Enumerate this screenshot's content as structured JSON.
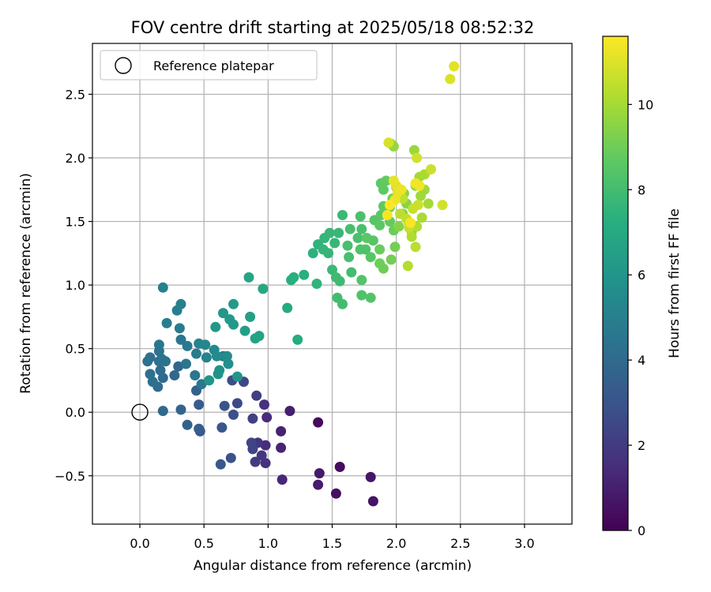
{
  "chart_data": {
    "type": "scatter",
    "title": "FOV centre drift starting at 2025/05/18 08:52:32",
    "xlabel": "Angular distance from reference (arcmin)",
    "ylabel": "Rotation from reference (arcmin)",
    "xlim": [
      -0.37,
      3.37
    ],
    "ylim": [
      -0.88,
      2.9
    ],
    "xticks": [
      0.0,
      0.5,
      1.0,
      1.5,
      2.0,
      2.5,
      3.0
    ],
    "xtick_labels": [
      "0.0",
      "0.5",
      "1.0",
      "1.5",
      "2.0",
      "2.5",
      "3.0"
    ],
    "yticks": [
      -0.5,
      0.0,
      0.5,
      1.0,
      1.5,
      2.0,
      2.5
    ],
    "ytick_labels": [
      "−0.5",
      "0.0",
      "0.5",
      "1.0",
      "1.5",
      "2.0",
      "2.5"
    ],
    "grid": true,
    "legend": {
      "position": "top-left",
      "entries": [
        "Reference platepar"
      ]
    },
    "colorbar": {
      "label": "Hours from first FF file",
      "range": [
        0,
        11.6
      ],
      "ticks": [
        0,
        2,
        4,
        6,
        8,
        10
      ],
      "colormap": "viridis"
    },
    "reference_point": {
      "x": 0.0,
      "y": 0.0
    },
    "series": [
      {
        "points": [
          [
            1.39,
            -0.08,
            0.3
          ],
          [
            1.56,
            -0.43,
            0.4
          ],
          [
            1.53,
            -0.64,
            0.5
          ],
          [
            1.82,
            -0.7,
            0.6
          ],
          [
            1.8,
            -0.51,
            0.7
          ],
          [
            1.4,
            -0.48,
            0.8
          ],
          [
            1.39,
            -0.57,
            0.9
          ],
          [
            1.17,
            0.01,
            1.0
          ],
          [
            1.1,
            -0.15,
            1.1
          ],
          [
            1.1,
            -0.28,
            1.2
          ],
          [
            1.11,
            -0.53,
            1.3
          ],
          [
            0.99,
            -0.04,
            1.4
          ],
          [
            0.98,
            -0.26,
            1.5
          ],
          [
            0.98,
            -0.4,
            1.6
          ],
          [
            0.97,
            0.06,
            1.7
          ],
          [
            0.92,
            -0.24,
            1.8
          ],
          [
            0.95,
            -0.34,
            1.9
          ],
          [
            0.9,
            -0.39,
            2.0
          ],
          [
            0.91,
            0.13,
            2.1
          ],
          [
            0.88,
            -0.05,
            2.2
          ],
          [
            0.88,
            -0.29,
            2.3
          ],
          [
            0.87,
            -0.24,
            2.4
          ],
          [
            0.81,
            0.24,
            2.5
          ],
          [
            0.76,
            0.07,
            2.6
          ],
          [
            0.72,
            0.25,
            2.7
          ],
          [
            0.73,
            -0.02,
            2.8
          ],
          [
            0.71,
            -0.36,
            2.9
          ],
          [
            0.66,
            0.05,
            3.0
          ],
          [
            0.64,
            -0.12,
            3.1
          ],
          [
            0.63,
            -0.41,
            3.2
          ],
          [
            0.47,
            -0.15,
            3.3
          ],
          [
            0.46,
            0.06,
            3.3
          ],
          [
            0.46,
            -0.13,
            3.4
          ],
          [
            0.44,
            0.17,
            3.5
          ],
          [
            0.37,
            -0.1,
            3.6
          ],
          [
            0.32,
            0.02,
            3.7
          ],
          [
            0.3,
            0.36,
            3.8
          ],
          [
            0.27,
            0.29,
            3.9
          ],
          [
            0.18,
            0.01,
            4.0
          ],
          [
            0.18,
            0.27,
            4.0
          ],
          [
            0.14,
            0.2,
            4.1
          ],
          [
            0.16,
            0.33,
            4.1
          ],
          [
            0.1,
            0.24,
            4.2
          ],
          [
            0.08,
            0.3,
            4.2
          ],
          [
            0.06,
            0.4,
            4.3
          ],
          [
            0.08,
            0.43,
            4.3
          ],
          [
            0.15,
            0.4,
            4.3
          ],
          [
            0.17,
            0.42,
            4.4
          ],
          [
            0.2,
            0.4,
            4.4
          ],
          [
            0.15,
            0.48,
            4.4
          ],
          [
            0.15,
            0.53,
            4.5
          ],
          [
            0.36,
            0.38,
            4.5
          ],
          [
            0.32,
            0.57,
            4.5
          ],
          [
            0.43,
            0.29,
            4.6
          ],
          [
            0.48,
            0.22,
            4.6
          ],
          [
            0.65,
            0.44,
            4.7
          ],
          [
            0.37,
            0.52,
            4.7
          ],
          [
            0.44,
            0.46,
            4.8
          ],
          [
            0.31,
            0.66,
            4.8
          ],
          [
            0.21,
            0.7,
            4.9
          ],
          [
            0.29,
            0.8,
            4.9
          ],
          [
            0.32,
            0.85,
            5.0
          ],
          [
            0.18,
            0.98,
            5.0
          ],
          [
            0.52,
            0.43,
            5.1
          ],
          [
            0.46,
            0.54,
            5.2
          ],
          [
            0.51,
            0.53,
            5.3
          ],
          [
            0.58,
            0.49,
            5.4
          ],
          [
            0.6,
            0.44,
            5.5
          ],
          [
            0.68,
            0.44,
            5.6
          ],
          [
            0.69,
            0.38,
            5.7
          ],
          [
            0.62,
            0.33,
            5.8
          ],
          [
            0.61,
            0.3,
            5.9
          ],
          [
            0.54,
            0.25,
            6.0
          ],
          [
            0.76,
            0.28,
            6.0
          ],
          [
            0.59,
            0.67,
            6.1
          ],
          [
            0.65,
            0.78,
            6.1
          ],
          [
            0.7,
            0.73,
            6.2
          ],
          [
            0.73,
            0.69,
            6.2
          ],
          [
            0.73,
            0.85,
            6.3
          ],
          [
            0.82,
            0.64,
            6.4
          ],
          [
            0.86,
            0.75,
            6.5
          ],
          [
            0.9,
            0.58,
            6.6
          ],
          [
            0.93,
            0.6,
            6.7
          ],
          [
            0.85,
            1.06,
            6.8
          ],
          [
            0.96,
            0.97,
            6.9
          ],
          [
            1.15,
            0.82,
            7.0
          ],
          [
            1.23,
            0.57,
            7.1
          ],
          [
            1.18,
            1.04,
            7.2
          ],
          [
            1.2,
            1.06,
            7.3
          ],
          [
            1.28,
            1.08,
            7.3
          ],
          [
            1.35,
            1.25,
            7.4
          ],
          [
            1.38,
            1.01,
            7.5
          ],
          [
            1.39,
            1.32,
            7.5
          ],
          [
            1.43,
            1.28,
            7.6
          ],
          [
            1.44,
            1.37,
            7.6
          ],
          [
            1.47,
            1.25,
            7.6
          ],
          [
            1.48,
            1.41,
            7.7
          ],
          [
            1.52,
            1.33,
            7.7
          ],
          [
            1.55,
            1.41,
            7.7
          ],
          [
            1.58,
            1.55,
            7.8
          ],
          [
            1.5,
            1.12,
            7.8
          ],
          [
            1.53,
            1.06,
            7.9
          ],
          [
            1.56,
            1.03,
            7.9
          ],
          [
            1.54,
            0.9,
            8.0
          ],
          [
            1.58,
            0.85,
            8.0
          ],
          [
            1.65,
            1.1,
            8.0
          ],
          [
            1.63,
            1.22,
            8.1
          ],
          [
            1.62,
            1.31,
            8.1
          ],
          [
            1.64,
            1.44,
            8.1
          ],
          [
            1.7,
            1.37,
            8.2
          ],
          [
            1.73,
            1.44,
            8.2
          ],
          [
            1.72,
            1.54,
            8.2
          ],
          [
            1.72,
            1.28,
            8.3
          ],
          [
            1.76,
            1.28,
            8.3
          ],
          [
            1.73,
            0.92,
            8.3
          ],
          [
            1.73,
            1.04,
            8.4
          ],
          [
            1.8,
            0.9,
            8.4
          ],
          [
            1.8,
            1.22,
            8.5
          ],
          [
            1.82,
            1.35,
            8.5
          ],
          [
            1.83,
            1.51,
            8.5
          ],
          [
            1.77,
            1.37,
            8.6
          ],
          [
            1.87,
            1.47,
            8.6
          ],
          [
            1.88,
            1.55,
            8.6
          ],
          [
            1.9,
            1.62,
            8.7
          ],
          [
            1.9,
            1.75,
            8.7
          ],
          [
            1.88,
            1.8,
            8.7
          ],
          [
            1.92,
            1.82,
            8.8
          ],
          [
            1.95,
            1.5,
            8.8
          ],
          [
            1.98,
            1.43,
            8.9
          ],
          [
            1.87,
            1.28,
            8.9
          ],
          [
            1.87,
            1.17,
            9.0
          ],
          [
            1.9,
            1.13,
            9.0
          ],
          [
            1.96,
            1.2,
            9.1
          ],
          [
            1.99,
            1.3,
            9.1
          ],
          [
            1.95,
            1.61,
            9.2
          ],
          [
            1.97,
            1.68,
            9.2
          ],
          [
            2.0,
            1.77,
            9.3
          ],
          [
            2.03,
            1.75,
            9.3
          ],
          [
            2.02,
            1.46,
            9.4
          ],
          [
            2.05,
            1.56,
            9.4
          ],
          [
            2.08,
            1.64,
            9.5
          ],
          [
            2.06,
            1.72,
            9.5
          ],
          [
            2.1,
            1.49,
            9.6
          ],
          [
            2.12,
            1.42,
            9.6
          ],
          [
            1.96,
            2.11,
            9.7
          ],
          [
            1.98,
            2.09,
            9.7
          ],
          [
            2.14,
            2.06,
            9.8
          ],
          [
            2.15,
            1.78,
            9.8
          ],
          [
            2.19,
            1.7,
            9.9
          ],
          [
            2.22,
            1.75,
            9.9
          ],
          [
            2.25,
            1.64,
            10.0
          ],
          [
            2.18,
            1.85,
            10.0
          ],
          [
            2.22,
            1.87,
            10.1
          ],
          [
            2.2,
            1.53,
            10.1
          ],
          [
            2.16,
            1.46,
            10.2
          ],
          [
            2.12,
            1.38,
            10.2
          ],
          [
            2.09,
            1.15,
            10.3
          ],
          [
            2.15,
            1.3,
            10.4
          ],
          [
            2.03,
            1.56,
            10.4
          ],
          [
            2.05,
            1.68,
            10.5
          ],
          [
            2.08,
            1.52,
            10.5
          ],
          [
            2.1,
            1.45,
            10.6
          ],
          [
            2.13,
            1.6,
            10.6
          ],
          [
            2.17,
            1.63,
            10.7
          ],
          [
            2.27,
            1.91,
            10.7
          ],
          [
            2.36,
            1.63,
            10.8
          ],
          [
            2.16,
            2.0,
            10.8
          ],
          [
            1.94,
            2.12,
            10.9
          ],
          [
            2.42,
            2.62,
            11.0
          ],
          [
            2.45,
            2.72,
            11.1
          ],
          [
            2.0,
            1.78,
            11.1
          ],
          [
            1.98,
            1.82,
            11.2
          ],
          [
            2.01,
            1.73,
            11.2
          ],
          [
            2.04,
            1.75,
            11.3
          ],
          [
            1.99,
            1.67,
            11.3
          ],
          [
            2.15,
            1.8,
            11.4
          ],
          [
            2.18,
            1.78,
            11.4
          ],
          [
            2.11,
            1.49,
            11.5
          ],
          [
            1.93,
            1.55,
            11.5
          ],
          [
            1.95,
            1.63,
            11.6
          ]
        ]
      }
    ]
  }
}
